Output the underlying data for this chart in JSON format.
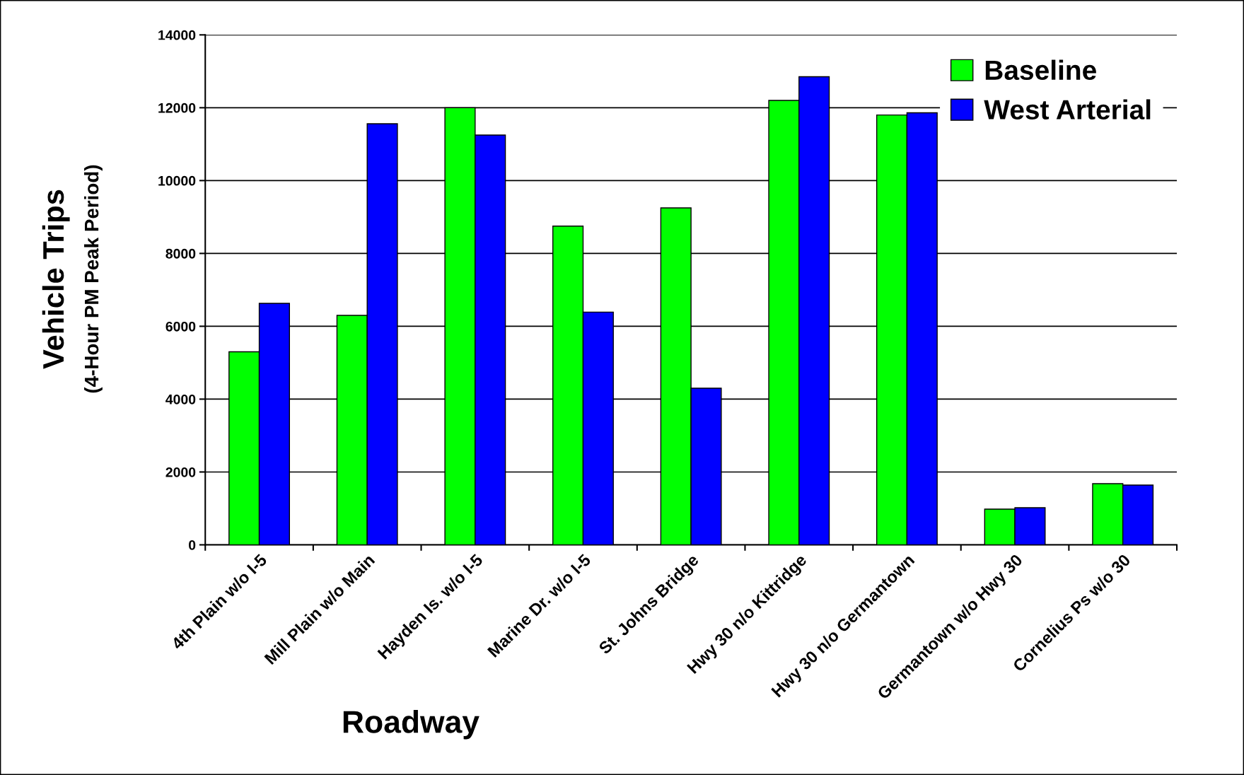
{
  "chart_data": {
    "type": "bar",
    "categories": [
      "4th Plain w/o I-5",
      "Mill Plain w/o Main",
      "Hayden Is. w/o I-5",
      "Marine Dr. w/o I-5",
      "St. Johns Bridge",
      "Hwy 30 n/o Kittridge",
      "Hwy 30 n/o Germantown",
      "Germantown w/o Hwy 30",
      "Cornelius Ps w/o 30"
    ],
    "series": [
      {
        "name": "Baseline",
        "color": "#00ff00",
        "values": [
          5300,
          6300,
          12000,
          8750,
          9250,
          12200,
          11800,
          980,
          1680
        ]
      },
      {
        "name": "West Arterial",
        "color": "#0000ff",
        "values": [
          6630,
          11560,
          11250,
          6390,
          4300,
          12850,
          11860,
          1020,
          1640
        ]
      }
    ],
    "xlabel": "Roadway",
    "ylabel": "Vehicle Trips\n(4-Hour PM Peak Period)",
    "ylim": [
      0,
      14000
    ],
    "yticks": [
      0,
      2000,
      4000,
      6000,
      8000,
      10000,
      12000,
      14000
    ],
    "grid": "y",
    "legend": "top right"
  }
}
